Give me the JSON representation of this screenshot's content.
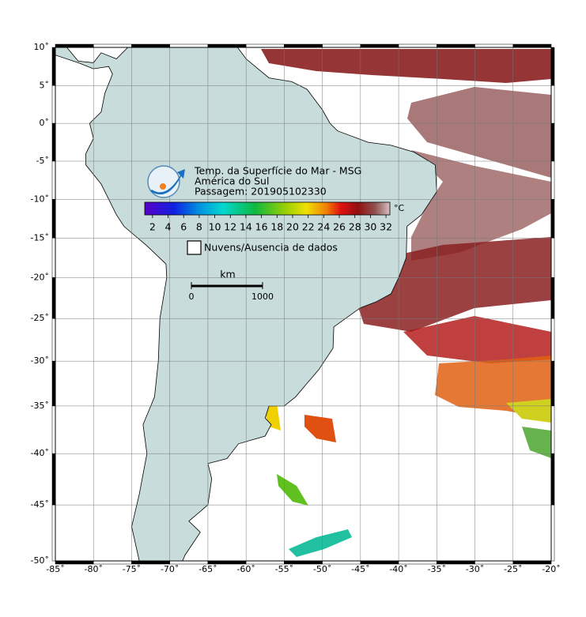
{
  "map": {
    "xlim": [
      -85,
      -20
    ],
    "ylim": [
      -50,
      10
    ],
    "xticks": [
      {
        "value": -85,
        "label": "-85˚"
      },
      {
        "value": -80,
        "label": "-80˚"
      },
      {
        "value": -75,
        "label": "-75˚"
      },
      {
        "value": -70,
        "label": "-70˚"
      },
      {
        "value": -65,
        "label": "-65˚"
      },
      {
        "value": -60,
        "label": "-60˚"
      },
      {
        "value": -55,
        "label": "-55˚"
      },
      {
        "value": -50,
        "label": "-50˚"
      },
      {
        "value": -45,
        "label": "-45˚"
      },
      {
        "value": -40,
        "label": "-40˚"
      },
      {
        "value": -35,
        "label": "-35˚"
      },
      {
        "value": -30,
        "label": "-30˚"
      },
      {
        "value": -25,
        "label": "-25˚"
      },
      {
        "value": -20,
        "label": "-20˚"
      }
    ],
    "yticks": [
      {
        "value": 10,
        "label": "10˚"
      },
      {
        "value": 5,
        "label": "5˚"
      },
      {
        "value": 0,
        "label": "0˚"
      },
      {
        "value": -5,
        "label": "-5˚"
      },
      {
        "value": -10,
        "label": "-10˚"
      },
      {
        "value": -15,
        "label": "-15˚"
      },
      {
        "value": -20,
        "label": "-20˚"
      },
      {
        "value": -25,
        "label": "-25˚"
      },
      {
        "value": -30,
        "label": "-30˚"
      },
      {
        "value": -35,
        "label": "-35˚"
      },
      {
        "value": -40,
        "label": "-40˚"
      },
      {
        "value": -45,
        "label": "-45˚"
      },
      {
        "value": -50,
        "label": "-50˚"
      }
    ],
    "grid": true
  },
  "header": {
    "title": "Temp. da Superfície do Mar - MSG",
    "region": "América do Sul",
    "pass": "Passagem: 201905102330"
  },
  "colorbar": {
    "lim": [
      1,
      32.5
    ],
    "ticks": [
      2,
      4,
      6,
      8,
      10,
      12,
      14,
      16,
      18,
      20,
      22,
      24,
      26,
      28,
      30,
      32
    ],
    "unit": "°C"
  },
  "legend": {
    "label": "Nuvens/Ausencia de dados"
  },
  "scale": {
    "unit": "km",
    "ticks": [
      0,
      1000
    ]
  }
}
